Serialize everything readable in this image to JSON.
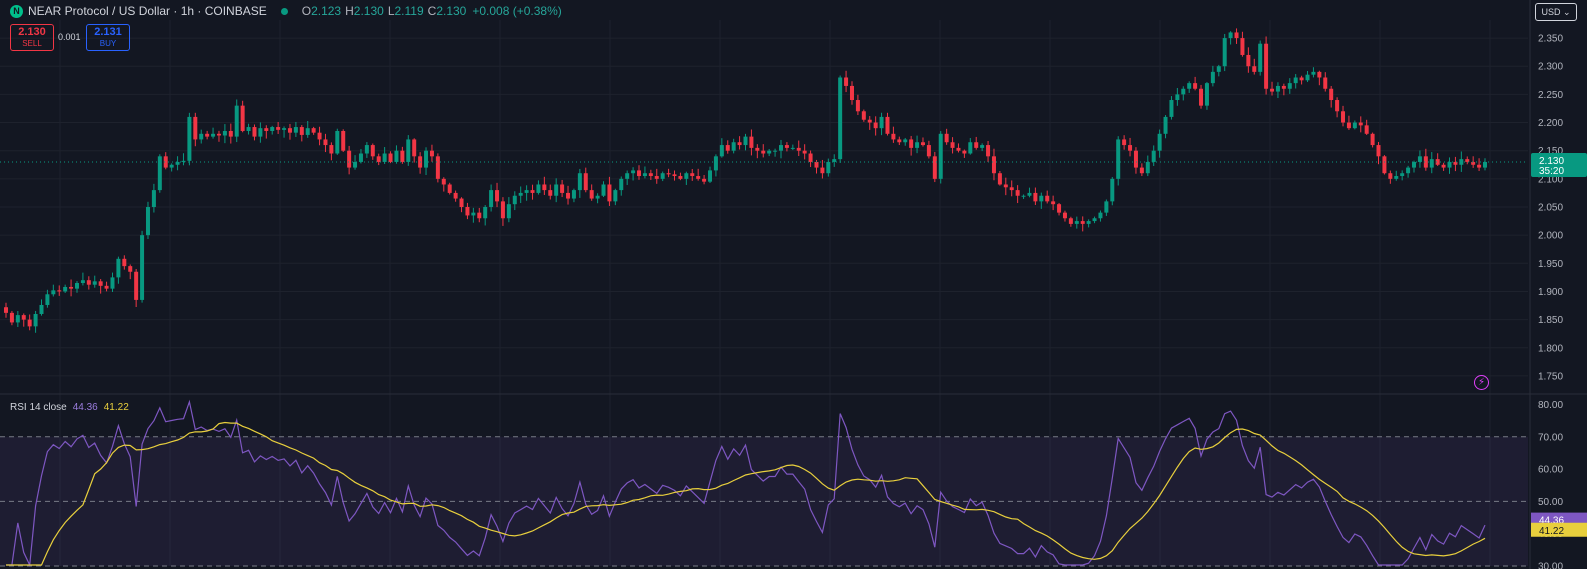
{
  "header": {
    "logo_letter": "N",
    "title": "NEAR Protocol / US Dollar · 1h · COINBASE",
    "ohlc": [
      {
        "key": "O",
        "value": "2.123"
      },
      {
        "key": "H",
        "value": "2.130"
      },
      {
        "key": "L",
        "value": "2.119"
      },
      {
        "key": "C",
        "value": "2.130"
      }
    ],
    "change": "+0.008 (+0.38%)"
  },
  "trade": {
    "sell_price": "2.130",
    "sell_label": "SELL",
    "spread": "0.001",
    "buy_price": "2.131",
    "buy_label": "BUY"
  },
  "currency_button": "USD ⌄",
  "rsi_header": {
    "name": "RSI 14 close",
    "value": "44.36",
    "ma_value": "41.22"
  },
  "colors": {
    "up": "#089981",
    "down": "#f23645",
    "rsi": "#7e57c2",
    "rsi_ma": "#e8cf3d",
    "price_tag": "#089981"
  },
  "chart_data": [
    {
      "type": "candlestick",
      "ylim": [
        1.725,
        2.375
      ],
      "yticks": [
        "1.750",
        "1.800",
        "1.850",
        "1.900",
        "1.950",
        "2.000",
        "2.050",
        "2.100",
        "2.150",
        "2.200",
        "2.250",
        "2.300",
        "2.350"
      ],
      "last_price": "2.130",
      "countdown": "35:20",
      "close": [
        1.862,
        1.845,
        1.858,
        1.85,
        1.838,
        1.86,
        1.876,
        1.895,
        1.902,
        1.9,
        1.908,
        1.905,
        1.915,
        1.92,
        1.912,
        1.918,
        1.91,
        1.905,
        1.925,
        1.958,
        1.945,
        1.935,
        1.885,
        2.0,
        2.05,
        2.08,
        2.14,
        2.12,
        2.125,
        2.13,
        2.132,
        2.21,
        2.17,
        2.18,
        2.175,
        2.18,
        2.177,
        2.185,
        2.175,
        2.23,
        2.185,
        2.192,
        2.175,
        2.19,
        2.185,
        2.192,
        2.187,
        2.19,
        2.182,
        2.192,
        2.178,
        2.19,
        2.182,
        2.17,
        2.16,
        2.145,
        2.185,
        2.15,
        2.12,
        2.13,
        2.145,
        2.16,
        2.14,
        2.13,
        2.145,
        2.13,
        2.15,
        2.13,
        2.17,
        2.14,
        2.12,
        2.15,
        2.14,
        2.1,
        2.09,
        2.075,
        2.065,
        2.05,
        2.035,
        2.04,
        2.03,
        2.05,
        2.08,
        2.06,
        2.03,
        2.055,
        2.07,
        2.075,
        2.08,
        2.075,
        2.09,
        2.08,
        2.07,
        2.09,
        2.075,
        2.065,
        2.08,
        2.11,
        2.08,
        2.065,
        2.07,
        2.09,
        2.06,
        2.08,
        2.1,
        2.11,
        2.115,
        2.105,
        2.11,
        2.105,
        2.1,
        2.11,
        2.108,
        2.105,
        2.1,
        2.11,
        2.105,
        2.1,
        2.095,
        2.115,
        2.14,
        2.16,
        2.15,
        2.165,
        2.16,
        2.175,
        2.155,
        2.15,
        2.145,
        2.15,
        2.15,
        2.16,
        2.155,
        2.155,
        2.15,
        2.145,
        2.13,
        2.12,
        2.11,
        2.13,
        2.135,
        2.28,
        2.265,
        2.24,
        2.22,
        2.205,
        2.2,
        2.19,
        2.21,
        2.18,
        2.17,
        2.165,
        2.17,
        2.155,
        2.165,
        2.16,
        2.14,
        2.1,
        2.18,
        2.165,
        2.155,
        2.15,
        2.145,
        2.165,
        2.155,
        2.16,
        2.14,
        2.11,
        2.09,
        2.085,
        2.08,
        2.07,
        2.07,
        2.075,
        2.06,
        2.07,
        2.06,
        2.055,
        2.04,
        2.03,
        2.02,
        2.025,
        2.02,
        2.025,
        2.03,
        2.04,
        2.06,
        2.1,
        2.17,
        2.16,
        2.15,
        2.12,
        2.11,
        2.13,
        2.15,
        2.18,
        2.21,
        2.24,
        2.25,
        2.26,
        2.27,
        2.26,
        2.23,
        2.27,
        2.29,
        2.3,
        2.35,
        2.36,
        2.35,
        2.32,
        2.3,
        2.29,
        2.34,
        2.26,
        2.255,
        2.265,
        2.26,
        2.27,
        2.28,
        2.275,
        2.285,
        2.29,
        2.28,
        2.26,
        2.24,
        2.22,
        2.2,
        2.19,
        2.2,
        2.195,
        2.18,
        2.16,
        2.14,
        2.11,
        2.1,
        2.105,
        2.11,
        2.12,
        2.13,
        2.14,
        2.12,
        2.135,
        2.125,
        2.12,
        2.13,
        2.125,
        2.135,
        2.13,
        2.125,
        2.12,
        2.13
      ]
    },
    {
      "type": "line",
      "name": "RSI 14 close",
      "ylim": [
        30,
        82
      ],
      "yticks": [
        "30.00",
        "40.00",
        "50.00",
        "60.00",
        "70.00",
        "80.00"
      ],
      "bands": [
        30,
        50,
        70
      ],
      "last_value": "44.36",
      "ma_last_value": "41.22"
    }
  ]
}
